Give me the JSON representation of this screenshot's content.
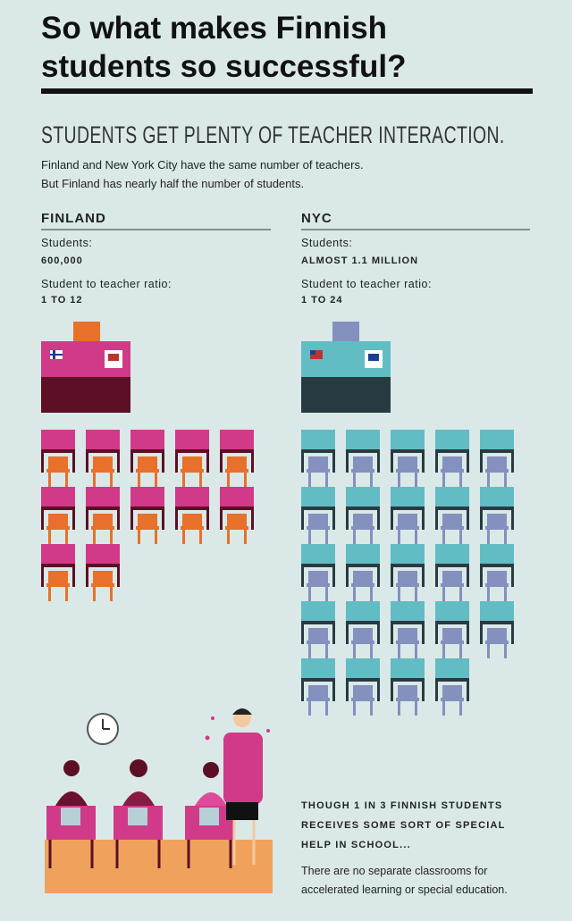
{
  "header": {
    "title_lines": [
      "So what makes Finnish",
      "students so successful?"
    ]
  },
  "section": {
    "heading": "STUDENTS GET PLENTY OF TEACHER INTERACTION.",
    "intro": [
      "Finland and New York City have the same number of teachers.",
      "But Finland has nearly half the number of students."
    ]
  },
  "columns": [
    {
      "name": "FINLAND",
      "students_label": "Students:",
      "students": "600,000",
      "ratio_label": "Student to teacher ratio:",
      "ratio": "1 TO 12"
    },
    {
      "name": "NYC",
      "students_label": "Students:",
      "students": "ALMOST 1.1 MILLION",
      "ratio_label": "Student to teacher ratio:",
      "ratio": "1 TO 24"
    }
  ],
  "note": {
    "bold_lines": [
      "THOUGH 1 IN 3 FINNISH STUDENTS",
      "RECEIVES SOME SORT OF SPECIAL",
      "HELP IN SCHOOL..."
    ],
    "text_lines": [
      "There are no separate classrooms for",
      "accelerated learning or special education."
    ]
  }
}
